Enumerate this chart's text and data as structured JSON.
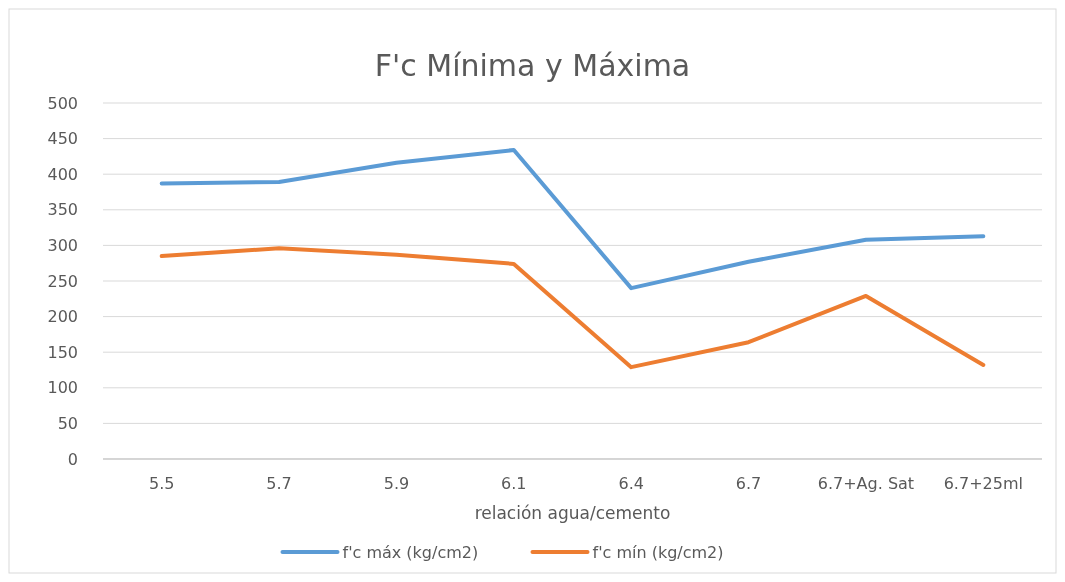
{
  "chart_data": {
    "type": "line",
    "title": "F'c Mínima y Máxima",
    "xlabel": "relación agua/cemento",
    "categories": [
      "5.5",
      "5.7",
      "5.9",
      "6.1",
      "6.4",
      "6.7",
      "6.7+Ag. Sat",
      "6.7+25ml"
    ],
    "series": [
      {
        "name": "f'c máx (kg/cm2)",
        "color": "#5b9bd5",
        "values": [
          387,
          389,
          416,
          434,
          240,
          277,
          308,
          313
        ]
      },
      {
        "name": "f'c mín (kg/cm2)",
        "color": "#ed7d31",
        "values": [
          285,
          296,
          287,
          274,
          129,
          164,
          229,
          132
        ]
      }
    ],
    "ylim": [
      0,
      500
    ],
    "yticks": [
      0,
      50,
      100,
      150,
      200,
      250,
      300,
      350,
      400,
      450,
      500
    ],
    "grid": "y",
    "legend": "bottom",
    "marker": "none",
    "line_style": "solid"
  }
}
